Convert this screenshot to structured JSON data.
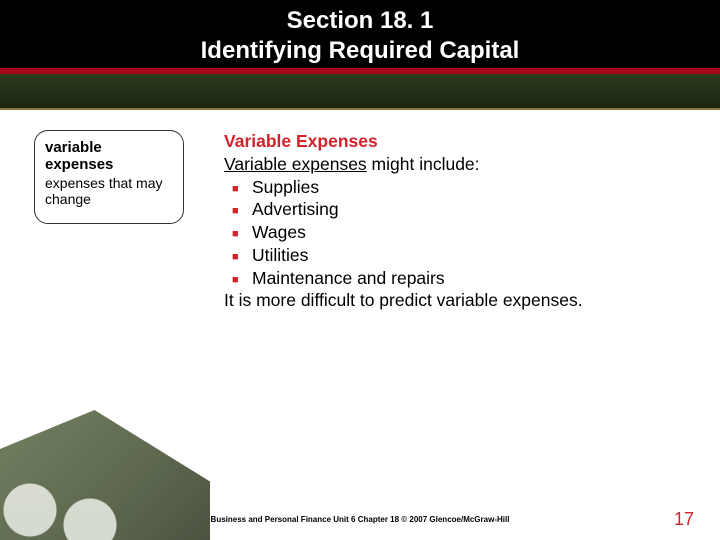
{
  "header": {
    "line1": "Section 18. 1",
    "line2": "Identifying Required Capital"
  },
  "sidebar": {
    "term": "variable expenses",
    "definition": "expenses that may change"
  },
  "main": {
    "title": "Variable Expenses",
    "intro_prefix": "Variable expenses",
    "intro_suffix": " might include:",
    "bullets": [
      "Supplies",
      "Advertising",
      "Wages",
      "Utilities",
      "Maintenance and repairs"
    ],
    "closing": "It is more difficult to predict variable expenses."
  },
  "footer": {
    "caption": "Business and Personal Finance  Unit 6  Chapter 18  © 2007  Glencoe/McGraw-Hill",
    "page_number": "17"
  },
  "colors": {
    "accent_red": "#d2232a",
    "header_black": "#000000",
    "header_red_stripe": "#a3071c"
  }
}
